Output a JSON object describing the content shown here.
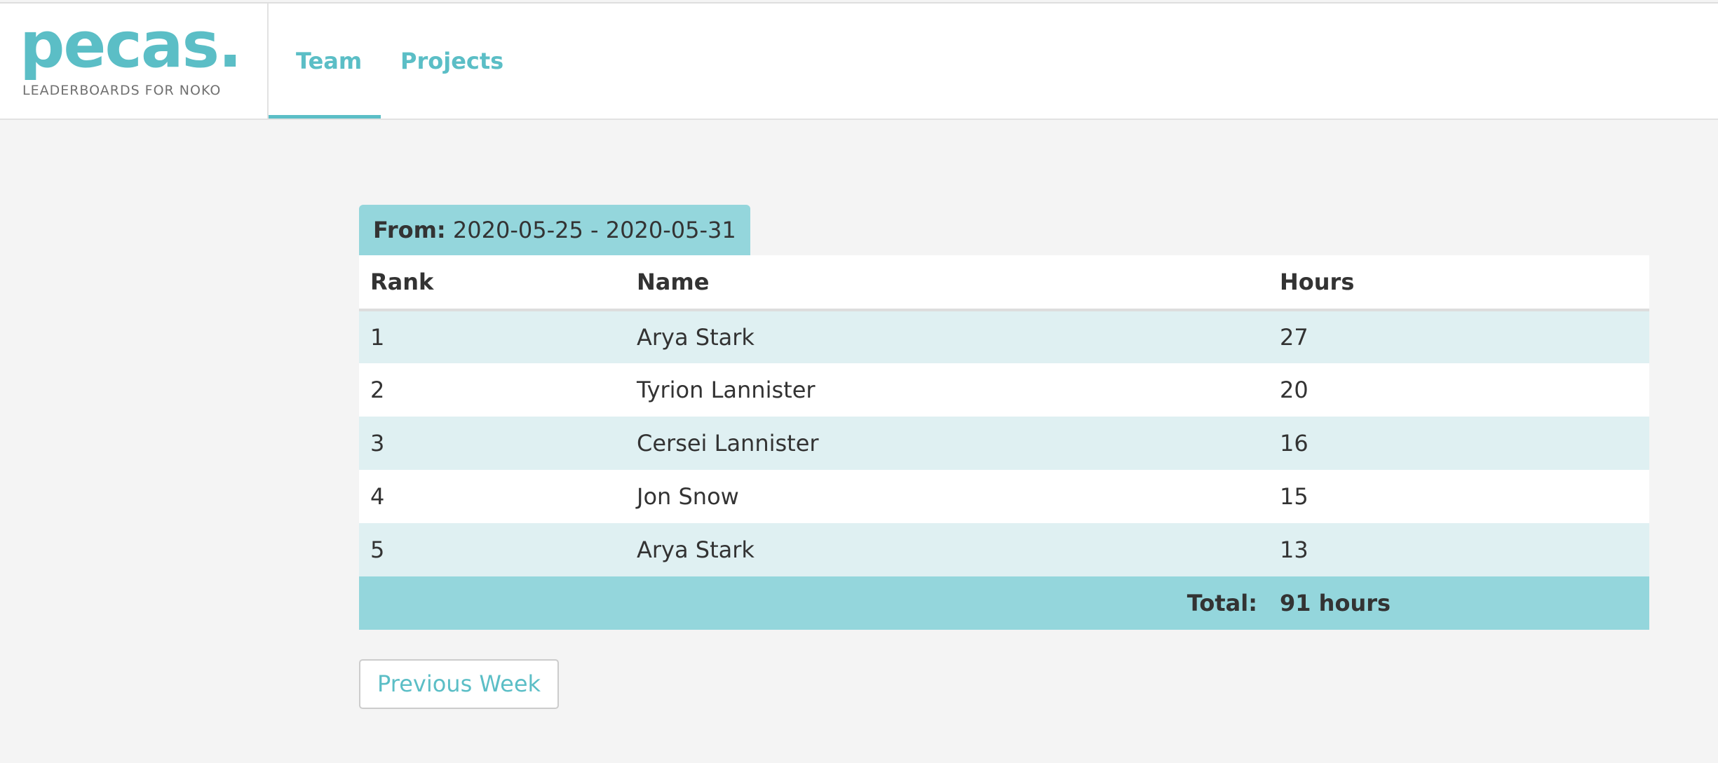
{
  "brand": {
    "logo": "pecas.",
    "tagline": "LEADERBOARDS FOR NOKO"
  },
  "nav": {
    "tabs": [
      {
        "label": "Team",
        "active": true
      },
      {
        "label": "Projects",
        "active": false
      }
    ]
  },
  "period": {
    "label": "From:",
    "range": "2020-05-25 - 2020-05-31"
  },
  "table": {
    "headers": {
      "rank": "Rank",
      "name": "Name",
      "hours": "Hours"
    },
    "rows": [
      {
        "rank": "1",
        "name": "Arya Stark",
        "hours": "27"
      },
      {
        "rank": "2",
        "name": "Tyrion Lannister",
        "hours": "20"
      },
      {
        "rank": "3",
        "name": "Cersei Lannister",
        "hours": "16"
      },
      {
        "rank": "4",
        "name": "Jon Snow",
        "hours": "15"
      },
      {
        "rank": "5",
        "name": "Arya Stark",
        "hours": "13"
      }
    ],
    "total_label": "Total:",
    "total_value": "91 hours"
  },
  "pagination": {
    "previous_label": "Previous Week"
  },
  "colors": {
    "accent": "#5bbec6",
    "accent_light": "#94d6dc",
    "row_stripe": "#dff0f2",
    "background": "#f4f4f4"
  }
}
